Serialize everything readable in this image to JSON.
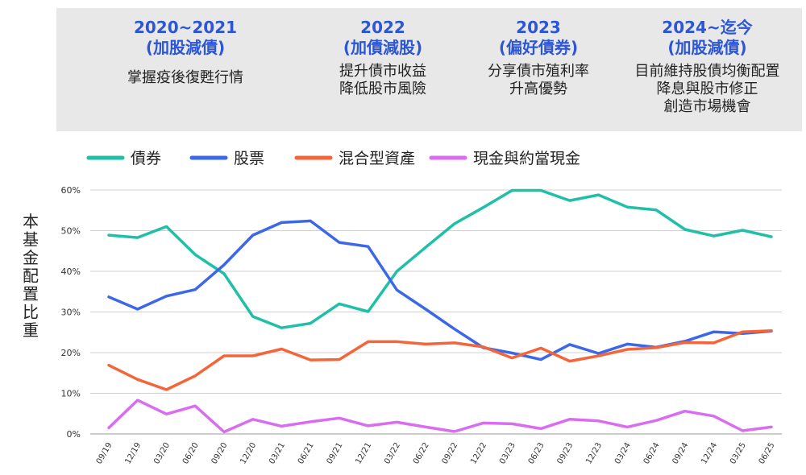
{
  "banner": {
    "periods": [
      {
        "title": "2020~2021",
        "subtitle": "(加股減債)",
        "desc": "掌握疫後復甦行情"
      },
      {
        "title": "2022",
        "subtitle": "(加債減股)",
        "desc": "提升債市收益\n降低股市風險"
      },
      {
        "title": "2023",
        "subtitle": "(偏好債券)",
        "desc": "分享債市殖利率\n升高優勢"
      },
      {
        "title": "2024~迄今",
        "subtitle": "(加股減債)",
        "desc": "目前維持股債均衡配置\n降息與股市修正\n創造市場機會"
      }
    ]
  },
  "chart_data": {
    "type": "line",
    "ylabel": "本基金配置比重",
    "ylim": [
      0,
      60
    ],
    "yticks": [
      "0%",
      "10%",
      "20%",
      "30%",
      "40%",
      "50%",
      "60%"
    ],
    "grid": true,
    "legend_position": "top-left",
    "categories": [
      "09/19",
      "12/19",
      "03/20",
      "06/20",
      "09/20",
      "12/20",
      "03/21",
      "06/21",
      "09/21",
      "12/21",
      "03/22",
      "06/22",
      "09/22",
      "12/22",
      "03/23",
      "06/23",
      "09/23",
      "12/23",
      "03/24",
      "06/24",
      "09/24",
      "12/24",
      "03/25",
      "06/25"
    ],
    "series": [
      {
        "name": "債券",
        "color": "#1fbfa8",
        "values": [
          48.9,
          48.3,
          51.0,
          44.1,
          39.4,
          28.9,
          26.1,
          27.2,
          32.0,
          30.1,
          40.0,
          45.9,
          51.7,
          55.7,
          59.9,
          59.9,
          57.4,
          58.8,
          55.8,
          55.1,
          50.3,
          48.7,
          50.1,
          48.5
        ]
      },
      {
        "name": "股票",
        "color": "#3b67e8",
        "values": [
          33.7,
          30.7,
          33.9,
          35.5,
          41.6,
          48.9,
          52.0,
          52.4,
          47.1,
          46.1,
          35.4,
          30.7,
          25.8,
          21.2,
          19.9,
          18.3,
          22.0,
          19.8,
          22.1,
          21.3,
          22.8,
          25.1,
          24.7,
          25.3
        ]
      },
      {
        "name": "混合型資產",
        "color": "#f4663a",
        "values": [
          16.9,
          13.4,
          10.9,
          14.3,
          19.2,
          19.2,
          20.9,
          18.2,
          18.3,
          22.7,
          22.7,
          22.1,
          22.4,
          21.4,
          18.7,
          21.1,
          17.9,
          19.2,
          20.8,
          21.2,
          22.5,
          22.4,
          25.1,
          25.4
        ]
      },
      {
        "name": "現金與約當現金",
        "color": "#d96cf0",
        "values": [
          1.5,
          8.3,
          4.9,
          6.9,
          0.5,
          3.6,
          1.9,
          3.0,
          3.9,
          2.0,
          2.9,
          1.7,
          0.6,
          2.7,
          2.5,
          1.3,
          3.6,
          3.2,
          1.7,
          3.3,
          5.6,
          4.4,
          0.8,
          1.7
        ]
      }
    ]
  }
}
